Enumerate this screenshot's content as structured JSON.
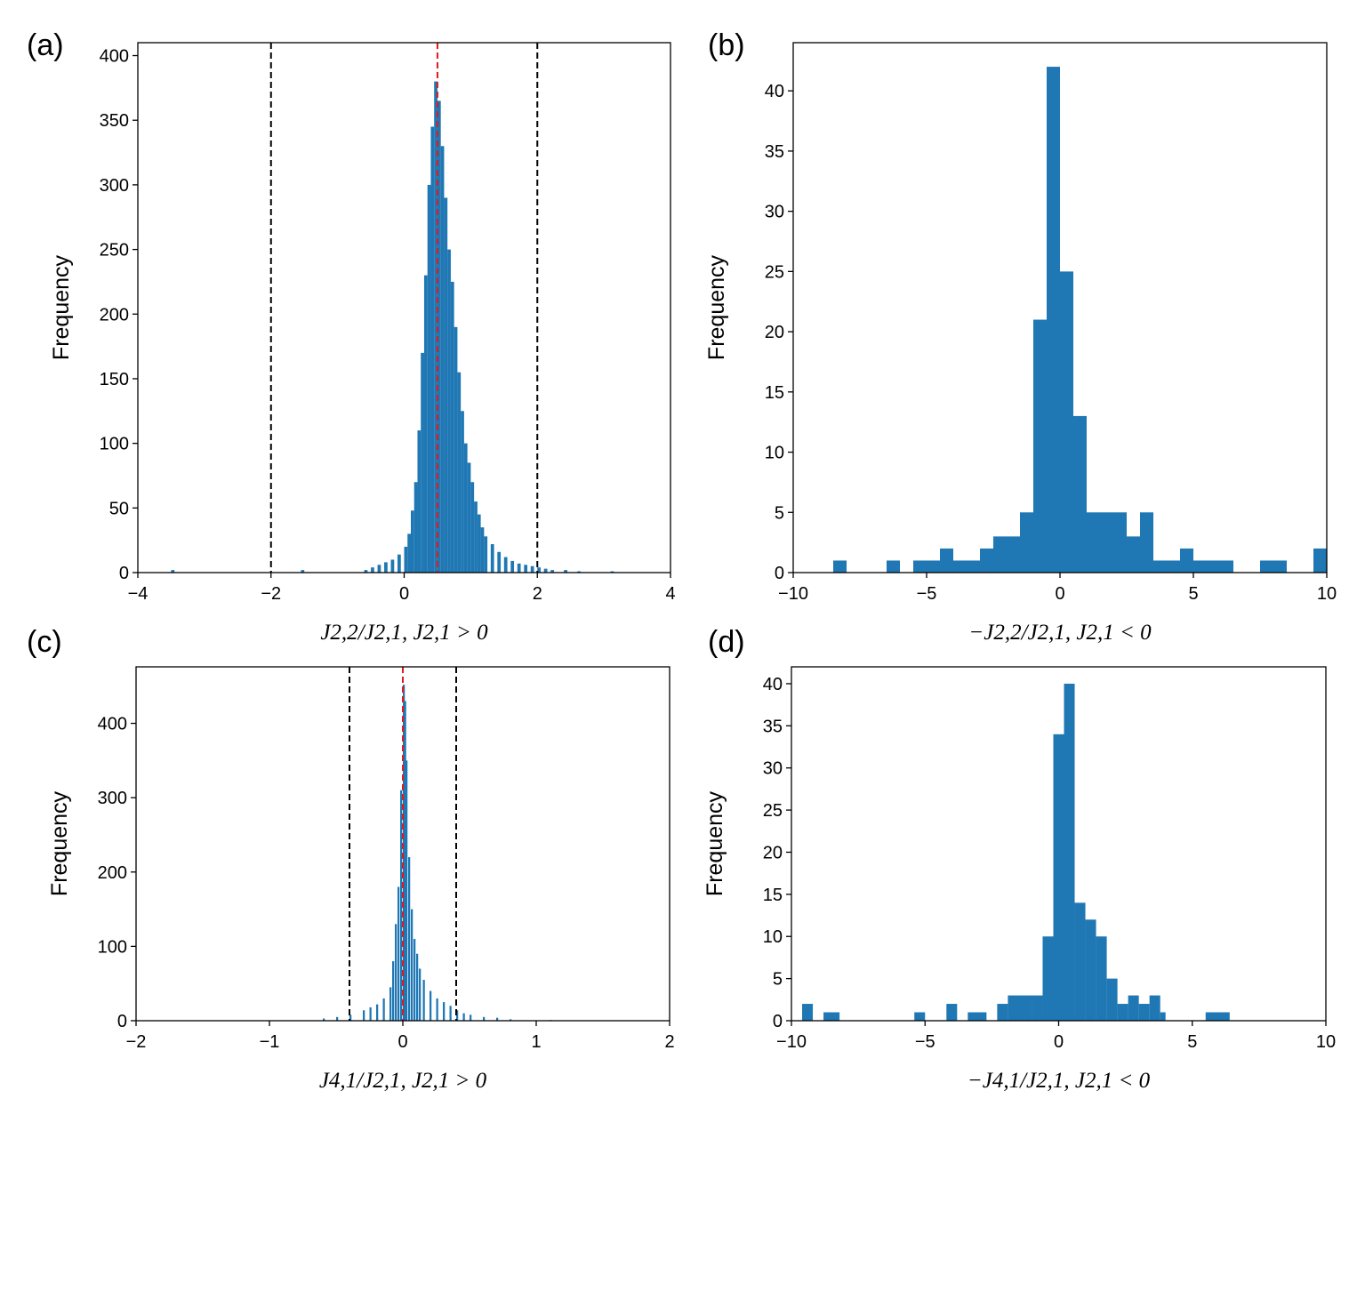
{
  "chart_data": [
    {
      "type": "bar",
      "panel_label": "(a)",
      "title": "",
      "xlabel": "J2,2/J2,1, J2,1 > 0",
      "ylabel": "Frequency",
      "xlim": [
        -4,
        4
      ],
      "ylim": [
        0,
        410
      ],
      "xticks": [
        -4,
        -2,
        0,
        2,
        4
      ],
      "xtick_labels": [
        "−4",
        "−2",
        "0",
        "2",
        "4"
      ],
      "yticks": [
        0,
        50,
        100,
        150,
        200,
        250,
        300,
        350,
        400
      ],
      "ytick_labels": [
        "0",
        "50",
        "100",
        "150",
        "200",
        "250",
        "300",
        "350",
        "400"
      ],
      "bar_color": "#1f77b4",
      "vlines": [
        {
          "x": -2,
          "color": "#000000"
        },
        {
          "x": 2,
          "color": "#000000"
        },
        {
          "x": 0.5,
          "color": "#e3191c"
        }
      ],
      "bins": {
        "x": [
          -3.5,
          -1.55,
          -0.6,
          -0.5,
          -0.4,
          -0.3,
          -0.2,
          -0.1,
          0.0,
          0.05,
          0.1,
          0.15,
          0.2,
          0.25,
          0.3,
          0.35,
          0.4,
          0.45,
          0.5,
          0.55,
          0.6,
          0.65,
          0.7,
          0.75,
          0.8,
          0.85,
          0.9,
          0.95,
          1.0,
          1.05,
          1.1,
          1.15,
          1.2,
          1.3,
          1.4,
          1.5,
          1.6,
          1.7,
          1.8,
          1.9,
          2.0,
          2.1,
          2.2,
          2.4,
          2.6,
          3.1
        ],
        "values": [
          2,
          2,
          2,
          4,
          6,
          8,
          10,
          14,
          20,
          30,
          48,
          70,
          110,
          170,
          230,
          300,
          345,
          380,
          365,
          330,
          290,
          250,
          225,
          190,
          155,
          125,
          100,
          85,
          70,
          55,
          45,
          35,
          28,
          22,
          16,
          12,
          9,
          7,
          6,
          5,
          4,
          3,
          2,
          2,
          1,
          1
        ],
        "width": 0.05
      }
    },
    {
      "type": "bar",
      "panel_label": "(b)",
      "title": "",
      "xlabel": "−J2,2/J2,1, J2,1 < 0",
      "ylabel": "Frequency",
      "xlim": [
        -10,
        10
      ],
      "ylim": [
        0,
        44
      ],
      "xticks": [
        -10,
        -5,
        0,
        5,
        10
      ],
      "xtick_labels": [
        "−10",
        "−5",
        "0",
        "5",
        "10"
      ],
      "yticks": [
        0,
        5,
        10,
        15,
        20,
        25,
        30,
        35,
        40
      ],
      "ytick_labels": [
        "0",
        "5",
        "10",
        "15",
        "20",
        "25",
        "30",
        "35",
        "40"
      ],
      "bar_color": "#1f77b4",
      "bins": {
        "edges": [
          -8.5,
          -8.0,
          -6.5,
          -6.0,
          -5.5,
          -5.0,
          -4.5,
          -4.0,
          -3.0,
          -2.5,
          -2.0,
          -1.5,
          -1.0,
          -0.5,
          0.0,
          0.5,
          1.0,
          2.0,
          2.5,
          3.0,
          3.5,
          4.0,
          4.5,
          5.0,
          6.0,
          6.5,
          7.5,
          8.5,
          9.5,
          10.0
        ],
        "values": [
          1,
          0,
          1,
          0,
          1,
          1,
          2,
          1,
          2,
          3,
          3,
          5,
          21,
          42,
          25,
          13,
          5,
          5,
          3,
          5,
          1,
          1,
          2,
          1,
          1,
          0,
          1,
          0,
          2
        ]
      }
    },
    {
      "type": "bar",
      "panel_label": "(c)",
      "title": "",
      "xlabel": "J4,1/J2,1, J2,1 > 0",
      "ylabel": "Frequency",
      "xlim": [
        -2,
        2
      ],
      "ylim": [
        0,
        476
      ],
      "xticks": [
        -2,
        -1,
        0,
        1,
        2
      ],
      "xtick_labels": [
        "−2",
        "−1",
        "0",
        "1",
        "2"
      ],
      "yticks": [
        0,
        100,
        200,
        300,
        400
      ],
      "ytick_labels": [
        "0",
        "100",
        "200",
        "300",
        "400"
      ],
      "bar_color": "#1f77b4",
      "vlines": [
        {
          "x": -0.4,
          "color": "#000000"
        },
        {
          "x": 0.4,
          "color": "#000000"
        },
        {
          "x": 0.0,
          "color": "#e3191c"
        }
      ],
      "bins": {
        "x": [
          -0.6,
          -0.5,
          -0.4,
          -0.3,
          -0.25,
          -0.2,
          -0.15,
          -0.1,
          -0.08,
          -0.06,
          -0.04,
          -0.02,
          0.0,
          0.01,
          0.02,
          0.04,
          0.06,
          0.08,
          0.1,
          0.12,
          0.15,
          0.2,
          0.25,
          0.3,
          0.35,
          0.4,
          0.45,
          0.5,
          0.6,
          0.7,
          0.8,
          1.1
        ],
        "values": [
          3,
          5,
          8,
          14,
          18,
          22,
          30,
          45,
          80,
          130,
          180,
          310,
          452,
          430,
          350,
          220,
          150,
          110,
          90,
          70,
          55,
          40,
          30,
          25,
          20,
          14,
          10,
          8,
          5,
          4,
          2,
          1
        ],
        "width": 0.015
      }
    },
    {
      "type": "bar",
      "panel_label": "(d)",
      "title": "",
      "xlabel": "−J4,1/J2,1, J2,1 < 0",
      "ylabel": "Frequency",
      "xlim": [
        -10,
        10
      ],
      "ylim": [
        0,
        42
      ],
      "xticks": [
        -10,
        -5,
        0,
        5,
        10
      ],
      "xtick_labels": [
        "−10",
        "−5",
        "0",
        "5",
        "10"
      ],
      "yticks": [
        0,
        5,
        10,
        15,
        20,
        25,
        30,
        35,
        40
      ],
      "ytick_labels": [
        "0",
        "5",
        "10",
        "15",
        "20",
        "25",
        "30",
        "35",
        "40"
      ],
      "bar_color": "#1f77b4",
      "bins": {
        "edges": [
          -9.6,
          -9.2,
          -8.8,
          -8.2,
          -5.4,
          -5.0,
          -4.2,
          -3.8,
          -3.4,
          -2.7,
          -2.3,
          -1.9,
          -1.0,
          -0.6,
          -0.2,
          0.2,
          0.6,
          1.0,
          1.4,
          1.8,
          2.2,
          2.6,
          3.0,
          3.4,
          3.8,
          4.0,
          5.5,
          6.4,
          7.0
        ],
        "values": [
          2,
          0,
          1,
          0,
          1,
          0,
          2,
          0,
          1,
          0,
          2,
          3,
          3,
          10,
          34,
          40,
          14,
          12,
          10,
          5,
          2,
          3,
          2,
          3,
          1,
          0,
          1,
          0
        ]
      }
    }
  ]
}
